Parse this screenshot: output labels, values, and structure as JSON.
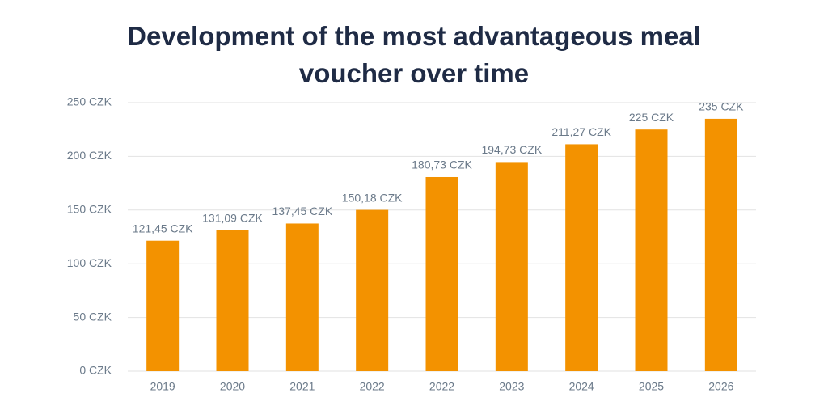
{
  "chart_data": {
    "type": "bar",
    "title": "Development of the most advantageous meal voucher over time",
    "categories": [
      "2019",
      "2020",
      "2021",
      "2022",
      "2022",
      "2023",
      "2024",
      "2025",
      "2026"
    ],
    "values": [
      121.45,
      131.09,
      137.45,
      150.18,
      180.73,
      194.73,
      211.27,
      225,
      235
    ],
    "value_labels": [
      "121,45 CZK",
      "131,09 CZK",
      "137,45 CZK",
      "150,18 CZK",
      "180,73 CZK",
      "194,73 CZK",
      "211,27 CZK",
      "225 CZK",
      "235 CZK"
    ],
    "color": "#f39200",
    "ylim": [
      0,
      250
    ],
    "yticks": [
      {
        "value": 0,
        "label": "0 CZK"
      },
      {
        "value": 50,
        "label": "50 CZK"
      },
      {
        "value": 100,
        "label": "100 CZK"
      },
      {
        "value": 150,
        "label": "150 CZK"
      },
      {
        "value": 200,
        "label": "200 CZK"
      },
      {
        "value": 250,
        "label": "250 CZK"
      }
    ],
    "grid": true
  }
}
